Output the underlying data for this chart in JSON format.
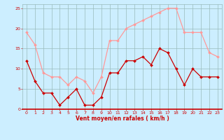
{
  "x": [
    0,
    1,
    2,
    3,
    4,
    5,
    6,
    7,
    8,
    9,
    10,
    11,
    12,
    13,
    14,
    15,
    16,
    17,
    18,
    19,
    20,
    21,
    22,
    23
  ],
  "avg_wind": [
    12,
    7,
    4,
    4,
    1,
    3,
    5,
    1,
    1,
    3,
    9,
    9,
    12,
    12,
    13,
    11,
    15,
    14,
    10,
    6,
    10,
    8,
    8,
    8
  ],
  "gust_wind": [
    19,
    16,
    9,
    8,
    8,
    6,
    8,
    7,
    4,
    8,
    17,
    17,
    20,
    21,
    22,
    23,
    24,
    25,
    25,
    19,
    19,
    19,
    14,
    13
  ],
  "avg_color": "#cc0000",
  "gust_color": "#ff9999",
  "bg_color": "#cceeff",
  "grid_color": "#99bbbb",
  "xlabel": "Vent moyen/en rafales ( km/h )",
  "ylim": [
    0,
    26
  ],
  "xlim": [
    -0.5,
    23.5
  ],
  "yticks": [
    0,
    5,
    10,
    15,
    20,
    25
  ],
  "xticks": [
    0,
    1,
    2,
    3,
    4,
    5,
    6,
    7,
    8,
    9,
    10,
    11,
    12,
    13,
    14,
    15,
    16,
    17,
    18,
    19,
    20,
    21,
    22,
    23
  ],
  "tick_color": "#cc0000",
  "label_color": "#cc0000",
  "marker": "D",
  "markersize": 2.0,
  "linewidth": 0.9,
  "tick_fontsize": 4.5,
  "label_fontsize": 5.5
}
